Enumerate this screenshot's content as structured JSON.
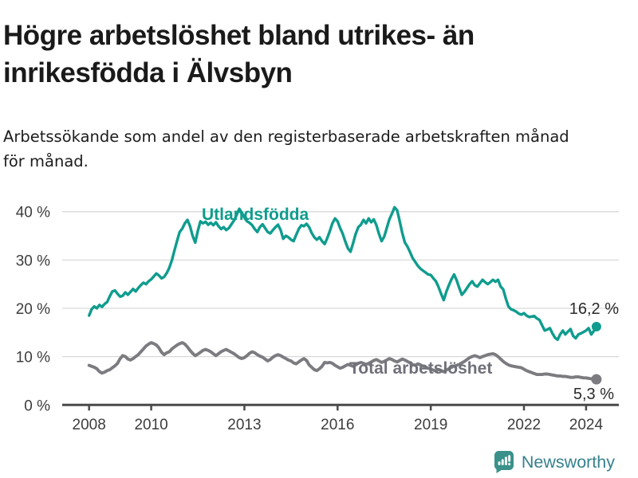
{
  "header": {
    "title_line1": "Högre arbetslöshet bland utrikes- än",
    "title_line2": "inrikesfödda i Älvsbyn",
    "subtitle_line1": "Arbetssökande som andel av den registerbaserade arbetskraften månad",
    "subtitle_line2": "för månad."
  },
  "footer": {
    "brand": "Newsworthy",
    "logo_icon": "bar-chart-speech-bubble-icon",
    "brand_color": "#36818d",
    "icon_color": "#3a918a"
  },
  "colors": {
    "series_foreign_born": "#0f9c8e",
    "series_total": "#7b7b80",
    "gridline": "#d9d9d9",
    "axis": "#4a4a4a",
    "tick_text": "#3d3d3d"
  },
  "chart_data": {
    "type": "line",
    "title": "Högre arbetslöshet bland utrikes- än inrikesfödda i Älvsbyn",
    "subtitle": "Arbetssökande som andel av den registerbaserade arbetskraften månad för månad.",
    "x_unit": "month",
    "x_start_year": 2008,
    "x_step_years": 0.0833333,
    "xlim": [
      2007.15,
      2025.05
    ],
    "ylim": [
      0,
      42
    ],
    "grid": "horizontal",
    "legend_position": "inline-labels",
    "y_ticks": [
      {
        "label": "0 %",
        "value": 0
      },
      {
        "label": "10 %",
        "value": 10
      },
      {
        "label": "20 %",
        "value": 20
      },
      {
        "label": "30 %",
        "value": 30
      },
      {
        "label": "40 %",
        "value": 40
      }
    ],
    "x_ticks": [
      {
        "label": "2008",
        "year": 2008
      },
      {
        "label": "2010",
        "year": 2010
      },
      {
        "label": "2013",
        "year": 2013
      },
      {
        "label": "2016",
        "year": 2016
      },
      {
        "label": "2019",
        "year": 2019
      },
      {
        "label": "2022",
        "year": 2022
      },
      {
        "label": "2024",
        "year": 2024
      }
    ],
    "series": [
      {
        "name": "Utlandsfödda",
        "color": "#0f9c8e",
        "end_label": "16,2 %",
        "end_value": 16.2,
        "values": [
          18.5,
          19.8,
          20.4,
          20.0,
          20.7,
          20.3,
          20.9,
          21.3,
          22.5,
          23.5,
          23.7,
          23.0,
          22.4,
          22.6,
          23.3,
          22.8,
          23.4,
          24.0,
          23.5,
          24.2,
          24.8,
          25.3,
          25.0,
          25.6,
          26.0,
          26.6,
          27.2,
          26.8,
          26.2,
          26.5,
          27.3,
          28.4,
          30.0,
          32.0,
          34.0,
          35.8,
          36.5,
          37.6,
          38.3,
          37.0,
          35.0,
          33.6,
          36.0,
          38.0,
          37.6,
          37.9,
          37.3,
          37.7,
          37.2,
          37.8,
          37.0,
          36.4,
          36.8,
          36.2,
          36.6,
          37.4,
          38.2,
          39.3,
          40.6,
          39.8,
          38.8,
          38.0,
          37.7,
          37.2,
          36.4,
          35.8,
          36.8,
          37.4,
          36.6,
          35.8,
          35.5,
          36.2,
          36.8,
          37.3,
          36.2,
          34.4,
          35.0,
          34.7,
          34.2,
          33.9,
          35.2,
          36.4,
          37.2,
          37.0,
          37.5,
          36.8,
          35.6,
          34.7,
          34.2,
          34.7,
          33.9,
          33.3,
          34.5,
          36.0,
          37.6,
          38.6,
          38.0,
          36.6,
          35.4,
          33.8,
          32.4,
          31.7,
          33.5,
          35.4,
          36.8,
          37.3,
          38.3,
          37.6,
          38.6,
          37.8,
          38.4,
          37.2,
          35.4,
          33.9,
          34.8,
          36.6,
          38.4,
          39.6,
          40.9,
          40.3,
          38.0,
          35.6,
          33.6,
          32.8,
          31.6,
          30.4,
          29.6,
          28.8,
          28.2,
          27.8,
          27.4,
          27.0,
          26.9,
          26.2,
          25.6,
          24.4,
          23.0,
          21.7,
          23.4,
          24.8,
          26.0,
          27.0,
          25.8,
          24.2,
          22.8,
          23.4,
          24.2,
          25.0,
          25.6,
          24.8,
          24.5,
          25.2,
          25.9,
          25.4,
          25.0,
          25.4,
          25.9,
          25.5,
          25.9,
          24.5,
          23.9,
          22.0,
          20.4,
          19.8,
          19.6,
          19.3,
          18.9,
          18.7,
          19.0,
          18.5,
          18.2,
          18.3,
          18.4,
          17.9,
          17.6,
          16.5,
          15.4,
          15.6,
          15.9,
          14.8,
          13.9,
          13.5,
          14.6,
          15.4,
          14.6,
          15.2,
          15.7,
          14.3,
          13.8,
          14.6,
          14.8,
          15.1,
          15.4,
          15.9,
          14.6,
          15.3,
          16.2
        ]
      },
      {
        "name": "Total arbetslöshet",
        "color": "#7b7b80",
        "end_label": "5,3 %",
        "end_value": 5.3,
        "values": [
          8.2,
          8.0,
          7.8,
          7.5,
          6.9,
          6.6,
          6.8,
          7.1,
          7.3,
          7.7,
          8.1,
          8.6,
          9.6,
          10.2,
          10.0,
          9.5,
          9.3,
          9.6,
          10.0,
          10.4,
          11.0,
          11.6,
          12.2,
          12.6,
          12.9,
          12.7,
          12.4,
          11.8,
          10.9,
          10.4,
          10.8,
          11.0,
          11.6,
          12.0,
          12.4,
          12.7,
          12.9,
          12.6,
          12.0,
          11.3,
          10.7,
          10.2,
          10.5,
          10.9,
          11.3,
          11.5,
          11.3,
          11.0,
          10.6,
          10.2,
          10.6,
          11.0,
          11.3,
          11.5,
          11.2,
          10.9,
          10.6,
          10.2,
          9.8,
          9.6,
          9.8,
          10.2,
          10.7,
          11.0,
          10.8,
          10.4,
          10.1,
          9.9,
          9.5,
          9.1,
          9.4,
          9.9,
          10.2,
          10.4,
          10.2,
          9.9,
          9.6,
          9.3,
          9.1,
          8.7,
          8.5,
          8.9,
          9.3,
          9.6,
          9.2,
          8.3,
          7.8,
          7.3,
          7.1,
          7.5,
          8.0,
          8.8,
          8.7,
          8.8,
          8.6,
          8.2,
          7.9,
          7.6,
          7.8,
          8.1,
          8.4,
          8.2,
          8.0,
          8.3,
          8.6,
          8.8,
          8.6,
          8.4,
          8.6,
          8.9,
          9.2,
          9.4,
          9.1,
          8.8,
          9.0,
          9.3,
          9.6,
          9.4,
          9.1,
          8.9,
          9.2,
          9.5,
          9.3,
          9.0,
          8.7,
          8.4,
          8.2,
          8.5,
          8.3,
          8.0,
          7.8,
          7.6,
          7.4,
          7.2,
          7.0,
          7.3,
          7.1,
          6.9,
          7.2,
          7.5,
          7.8,
          8.0,
          8.2,
          8.4,
          8.7,
          9.0,
          9.4,
          9.8,
          10.0,
          10.2,
          10.0,
          9.8,
          10.0,
          10.2,
          10.4,
          10.5,
          10.6,
          10.4,
          10.0,
          9.5,
          9.0,
          8.6,
          8.3,
          8.1,
          8.0,
          7.9,
          7.8,
          7.7,
          7.4,
          7.1,
          6.9,
          6.7,
          6.5,
          6.3,
          6.3,
          6.3,
          6.4,
          6.4,
          6.3,
          6.2,
          6.1,
          6.0,
          6.0,
          5.9,
          5.9,
          5.8,
          5.7,
          5.7,
          5.8,
          5.8,
          5.7,
          5.6,
          5.6,
          5.5,
          5.4,
          5.4,
          5.3
        ]
      }
    ]
  }
}
